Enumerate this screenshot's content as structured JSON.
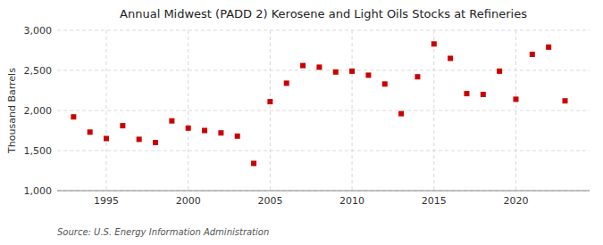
{
  "chart_data": {
    "type": "scatter",
    "title": "Annual Midwest (PADD 2) Kerosene and Light Oils Stocks at Refineries",
    "ylabel": "Thousand Barrels",
    "source": "Source: U.S. Energy Information Administration",
    "x": [
      1993,
      1994,
      1995,
      1996,
      1997,
      1998,
      1999,
      2000,
      2001,
      2002,
      2003,
      2004,
      2005,
      2006,
      2007,
      2008,
      2009,
      2010,
      2011,
      2012,
      2013,
      2014,
      2015,
      2016,
      2017,
      2018,
      2019,
      2020,
      2021,
      2022,
      2023
    ],
    "values": [
      1920,
      1730,
      1650,
      1810,
      1640,
      1600,
      1870,
      1780,
      1750,
      1720,
      1680,
      1340,
      2110,
      2340,
      2560,
      2540,
      2480,
      2490,
      2440,
      2330,
      1960,
      2420,
      2830,
      2650,
      2210,
      2200,
      2490,
      2140,
      2700,
      2790,
      2120
    ],
    "color": "#cc0000",
    "marker": "square",
    "xlim": [
      1992.0,
      2024.5
    ],
    "xticks": [
      1995,
      2000,
      2005,
      2010,
      2015,
      2020
    ],
    "ylim": [
      1000,
      3000
    ],
    "yticks": [
      {
        "value": 1000,
        "label": "1,000"
      },
      {
        "value": 1500,
        "label": "1,500"
      },
      {
        "value": 2000,
        "label": "2,000"
      },
      {
        "value": 2500,
        "label": "2,500"
      },
      {
        "value": 3000,
        "label": "3,000"
      }
    ],
    "grid": true
  }
}
